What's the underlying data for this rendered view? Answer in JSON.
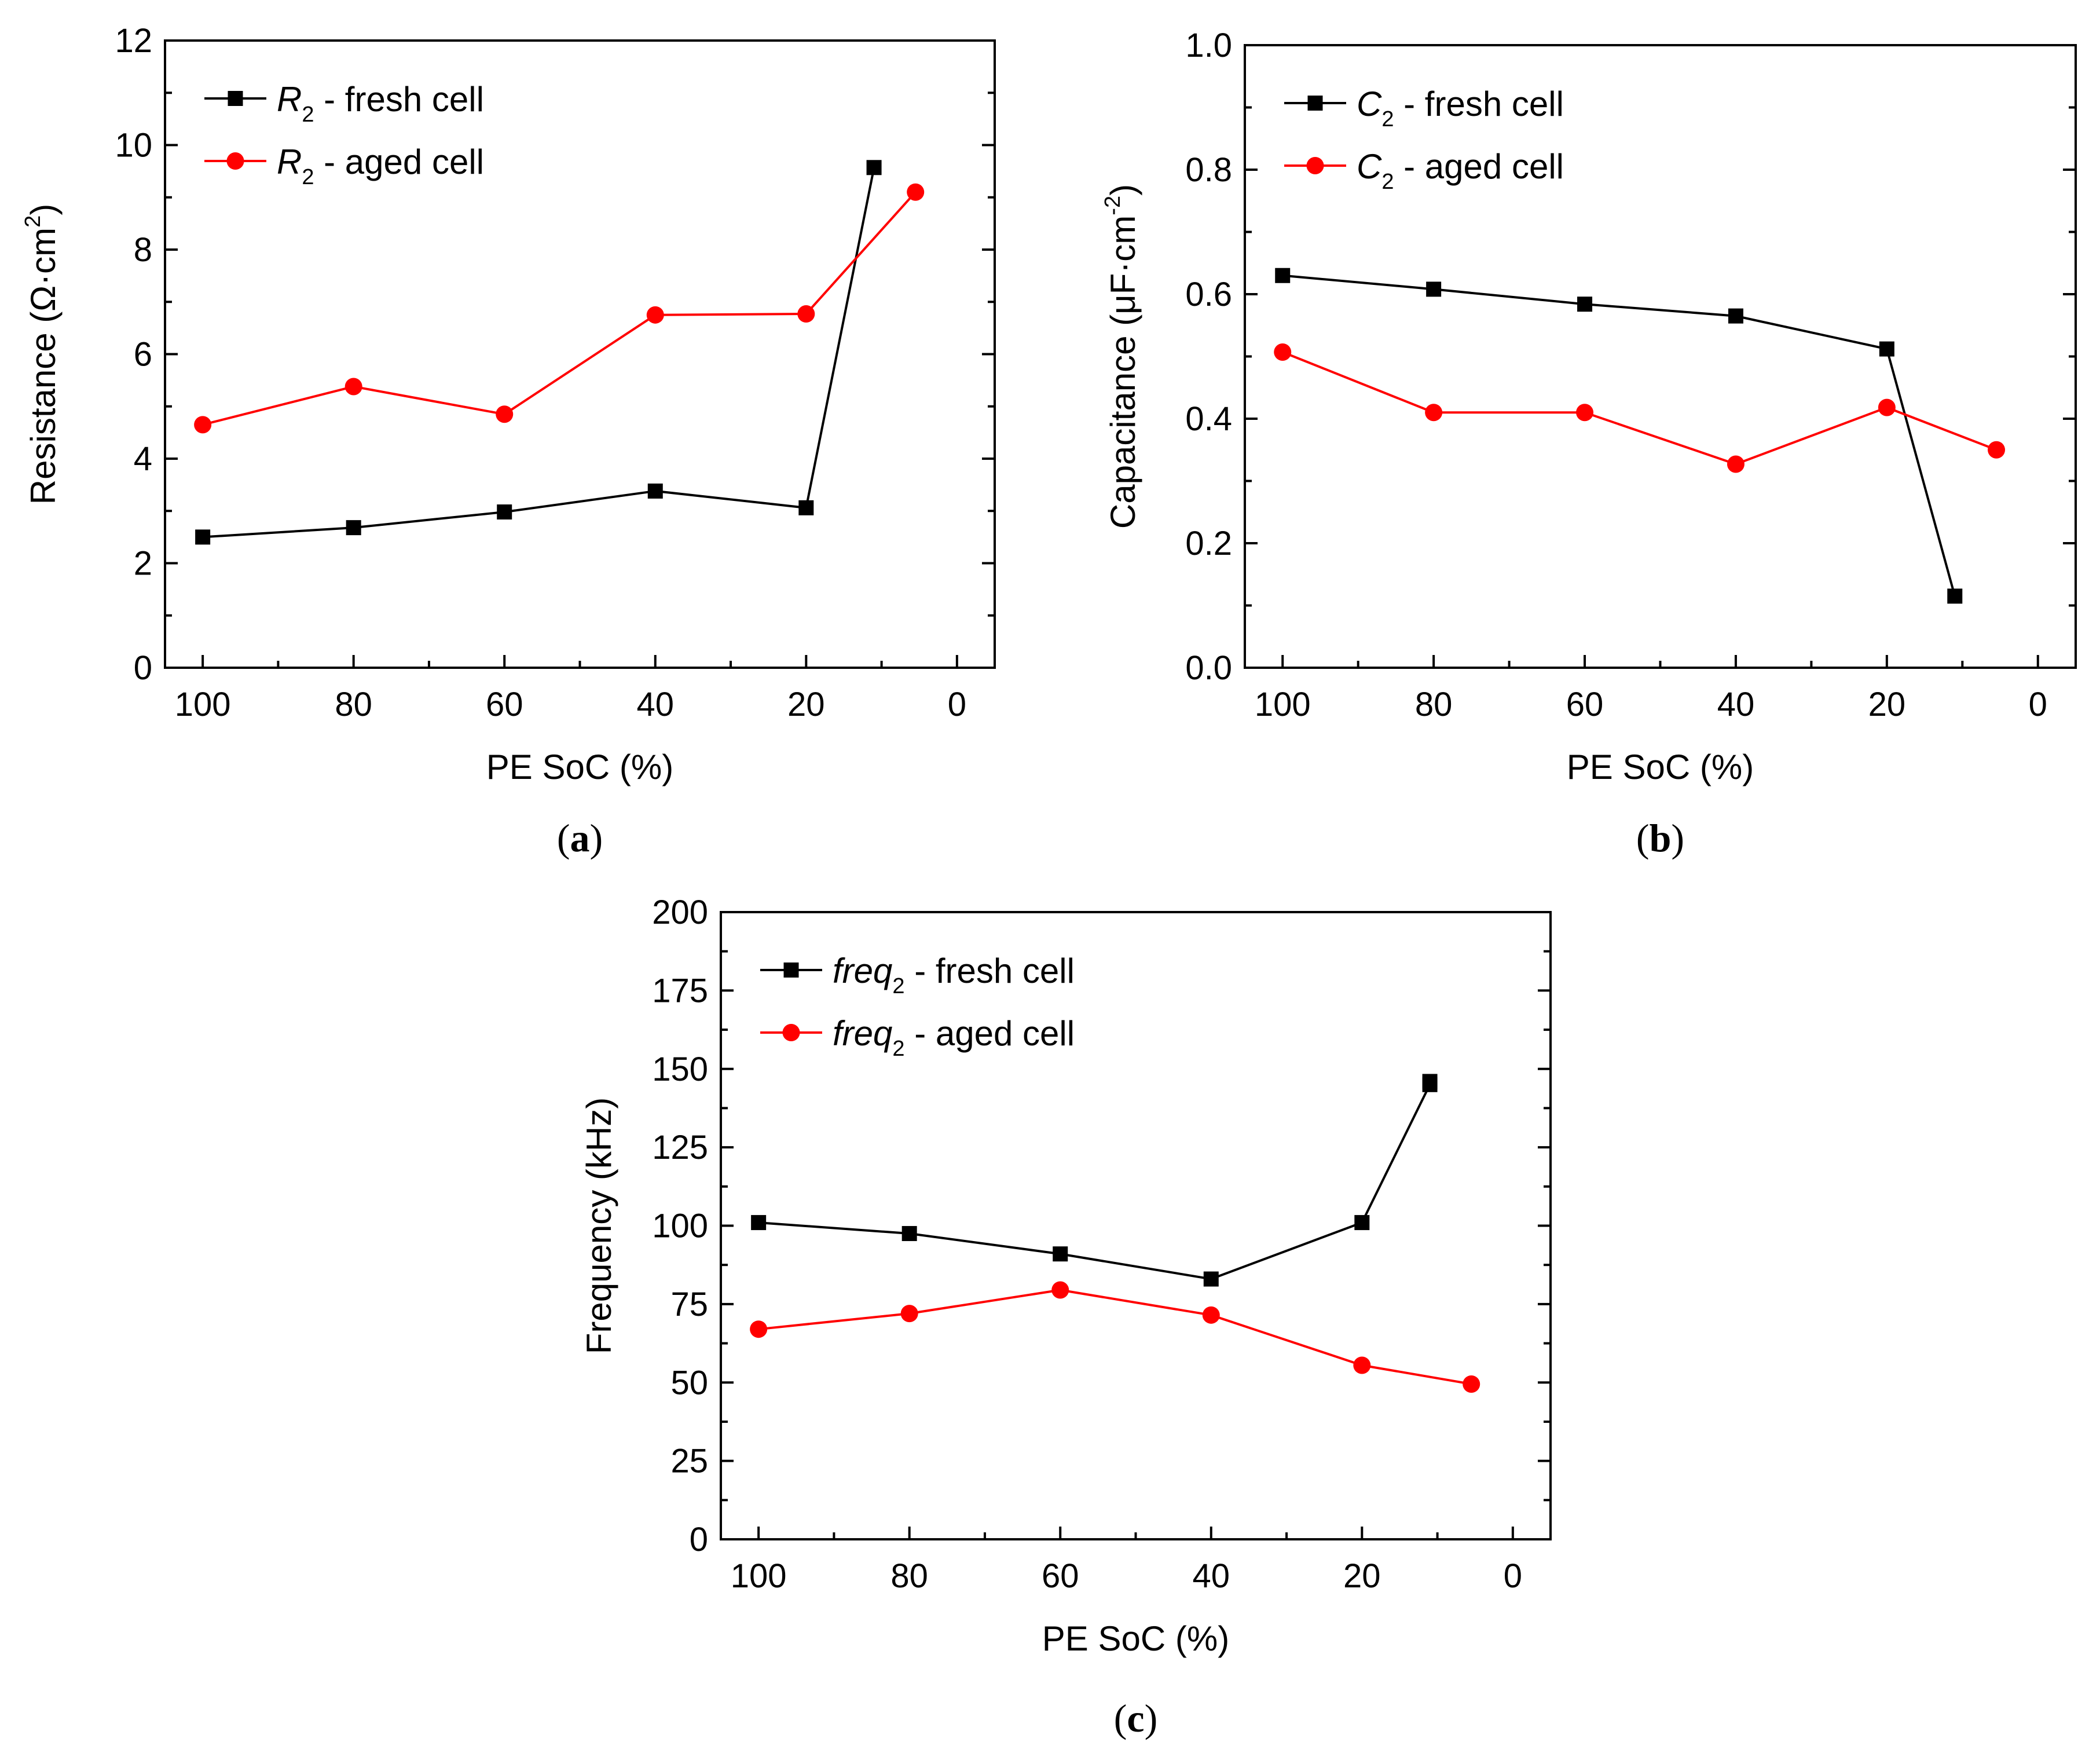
{
  "chart_data": [
    {
      "type": "line",
      "panel_label": "a",
      "title": "",
      "xlabel": "PE SoC (%)",
      "ylabel": "Resistance (Ω·cm²)",
      "ylabel_parts": {
        "main": "Resistance (Ω·cm",
        "sup": "2",
        "end": ")"
      },
      "xlim": [
        105,
        -5
      ],
      "ylim": [
        0,
        12
      ],
      "xticks": [
        100,
        80,
        60,
        40,
        20,
        0
      ],
      "yticks": [
        0,
        2,
        4,
        6,
        8,
        10,
        12
      ],
      "ytick_labels": [
        "0",
        "2",
        "4",
        "6",
        "8",
        "10",
        "12"
      ],
      "legend_position": "top-left",
      "series": [
        {
          "name": "R2 - fresh cell",
          "symbol": "R",
          "sub": "2",
          "suffix": " - fresh cell",
          "color": "#000000",
          "marker": "square",
          "x": [
            100,
            80,
            60,
            40,
            20,
            11
          ],
          "y": [
            2.5,
            2.68,
            2.98,
            3.38,
            3.06,
            9.57
          ]
        },
        {
          "name": "R2 - aged cell",
          "symbol": "R",
          "sub": "2",
          "suffix": " - aged cell",
          "color": "#ff0000",
          "marker": "circle",
          "x": [
            100,
            80,
            60,
            40,
            20,
            5.5
          ],
          "y": [
            4.65,
            5.38,
            4.85,
            6.75,
            6.77,
            9.1
          ]
        }
      ]
    },
    {
      "type": "line",
      "panel_label": "b",
      "title": "",
      "xlabel": "PE SoC (%)",
      "ylabel": "Capacitance (μF·cm⁻²)",
      "ylabel_parts": {
        "main": "Capacitance (μF·cm",
        "sup": "-2",
        "end": ")"
      },
      "xlim": [
        105,
        -5
      ],
      "ylim": [
        0,
        1.0
      ],
      "xticks": [
        100,
        80,
        60,
        40,
        20,
        0
      ],
      "yticks": [
        0,
        0.2,
        0.4,
        0.6,
        0.8,
        1.0
      ],
      "ytick_labels": [
        "0.0",
        "0.2",
        "0.4",
        "0.6",
        "0.8",
        "1.0"
      ],
      "legend_position": "top-left",
      "series": [
        {
          "name": "C2 - fresh cell",
          "symbol": "C",
          "sub": "2",
          "suffix": " - fresh cell",
          "color": "#000000",
          "marker": "square",
          "x": [
            100,
            80,
            60,
            40,
            20,
            11
          ],
          "y": [
            0.63,
            0.608,
            0.584,
            0.565,
            0.512,
            0.115
          ]
        },
        {
          "name": "C2 - aged cell",
          "symbol": "C",
          "sub": "2",
          "suffix": " - aged cell",
          "color": "#ff0000",
          "marker": "circle",
          "x": [
            100,
            80,
            60,
            40,
            20,
            5.5
          ],
          "y": [
            0.507,
            0.41,
            0.41,
            0.327,
            0.418,
            0.35
          ]
        }
      ]
    },
    {
      "type": "line",
      "panel_label": "c",
      "title": "",
      "xlabel": "PE SoC (%)",
      "ylabel": "Frequency (kHz)",
      "ylabel_parts": {
        "main": "Frequency (kHz)",
        "sup": "",
        "end": ""
      },
      "xlim": [
        105,
        -5
      ],
      "ylim": [
        0,
        200
      ],
      "xticks": [
        100,
        80,
        60,
        40,
        20,
        0
      ],
      "yticks": [
        0,
        25,
        50,
        75,
        100,
        125,
        150,
        175,
        200
      ],
      "ytick_labels": [
        "0",
        "25",
        "50",
        "75",
        "100",
        "125",
        "150",
        "175",
        "200"
      ],
      "legend_position": "top-left",
      "series": [
        {
          "name": "freq2 - fresh cell",
          "symbol": "freq",
          "sub": "2",
          "suffix": " - fresh cell",
          "color": "#000000",
          "marker": "square",
          "x": [
            100,
            80,
            60,
            40,
            20,
            11,
            11
          ],
          "y": [
            101,
            97.5,
            91,
            83,
            101,
            145,
            146
          ]
        },
        {
          "name": "freq2 - aged cell",
          "symbol": "freq",
          "sub": "2",
          "suffix": " - aged cell",
          "color": "#ff0000",
          "marker": "circle",
          "x": [
            100,
            80,
            60,
            40,
            20,
            5.5
          ],
          "y": [
            67,
            72,
            79.5,
            71.5,
            55.5,
            49.5
          ]
        }
      ]
    }
  ]
}
